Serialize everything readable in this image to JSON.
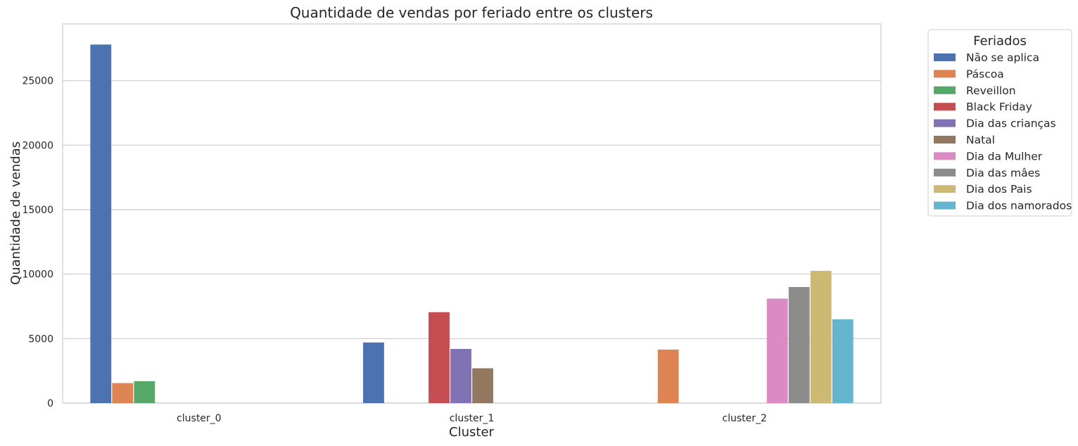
{
  "chart_data": {
    "type": "bar",
    "title": "Quantidade de vendas por feriado entre os clusters",
    "xlabel": "Cluster",
    "ylabel": "Quantidade de vendas",
    "categories": [
      "cluster_0",
      "cluster_1",
      "cluster_2"
    ],
    "ylim": [
      0,
      29400
    ],
    "yticks": [
      0,
      5000,
      10000,
      15000,
      20000,
      25000
    ],
    "ytick_labels": [
      "0",
      "5000",
      "10000",
      "15000",
      "20000",
      "25000"
    ],
    "grid": "horizontal",
    "legend": {
      "title": "Feriados",
      "placement": "outside-right"
    },
    "series": [
      {
        "name": "Não se aplica",
        "color": "#4c72b0",
        "values": [
          27800,
          4700,
          0
        ]
      },
      {
        "name": "Páscoa",
        "color": "#dd8452",
        "values": [
          1550,
          0,
          4150
        ]
      },
      {
        "name": "Reveillon",
        "color": "#55a868",
        "values": [
          1700,
          0,
          0
        ]
      },
      {
        "name": "Black Friday",
        "color": "#c44e52",
        "values": [
          0,
          7050,
          0
        ]
      },
      {
        "name": "Dia das crianças",
        "color": "#8172b3",
        "values": [
          0,
          4200,
          0
        ]
      },
      {
        "name": "Natal",
        "color": "#937860",
        "values": [
          0,
          2700,
          0
        ]
      },
      {
        "name": "Dia da Mulher",
        "color": "#da8bc3",
        "values": [
          0,
          0,
          8100
        ]
      },
      {
        "name": "Dia das mâes",
        "color": "#8c8c8c",
        "values": [
          0,
          0,
          9000
        ]
      },
      {
        "name": "Dia dos Pais",
        "color": "#ccb974",
        "values": [
          0,
          0,
          10250
        ]
      },
      {
        "name": "Dia dos namorados",
        "color": "#64b5cd",
        "values": [
          0,
          0,
          6500
        ]
      }
    ]
  }
}
